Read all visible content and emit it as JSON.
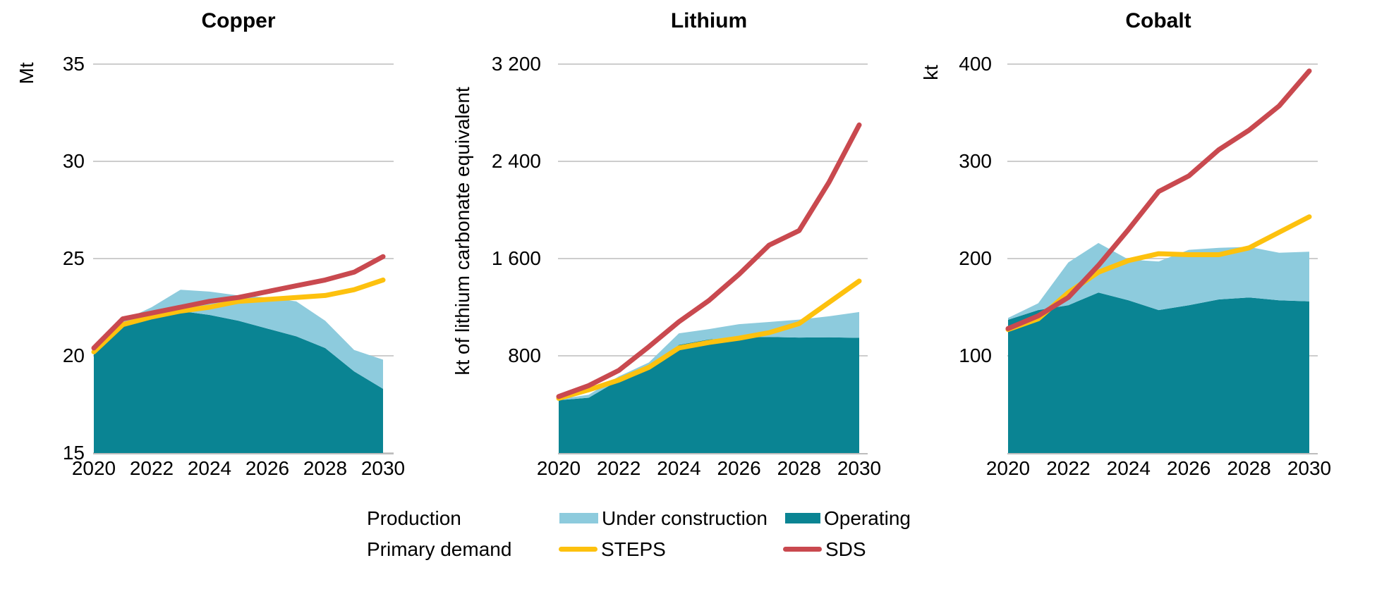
{
  "page": {
    "background": "#ffffff"
  },
  "colors": {
    "operating": "#0A8493",
    "under_construction": "#8DCBDD",
    "steps": "#FDC10E",
    "sds": "#C9494F",
    "gridline": "#CDCDCD",
    "baseline": "#BDBDBD",
    "text": "#000000"
  },
  "legend": {
    "production_label": "Production",
    "primary_demand_label": "Primary demand",
    "under_construction_label": "Under construction",
    "operating_label": "Operating",
    "steps_label": "STEPS",
    "sds_label": "SDS"
  },
  "chart_data": [
    {
      "type": "area",
      "title": "Copper",
      "unit_label": "Mt",
      "grid": true,
      "x": [
        2020,
        2021,
        2022,
        2023,
        2024,
        2025,
        2026,
        2027,
        2028,
        2029,
        2030
      ],
      "x_tick_labels": [
        "2020",
        "2022",
        "2024",
        "2026",
        "2028",
        "2030"
      ],
      "x_tick_years": [
        2020,
        2022,
        2024,
        2026,
        2028,
        2030
      ],
      "ylim": [
        15,
        35
      ],
      "y_ticks": [
        {
          "label": "35",
          "value": 35
        },
        {
          "label": "30",
          "value": 30
        },
        {
          "label": "25",
          "value": 25
        },
        {
          "label": "20",
          "value": 20
        },
        {
          "label": "15",
          "value": 15
        }
      ],
      "series": [
        {
          "name": "Operating",
          "role": "operating",
          "kind": "area",
          "values": [
            20.1,
            21.5,
            22.1,
            22.3,
            22.1,
            21.8,
            21.4,
            21.0,
            20.4,
            19.2,
            18.3
          ]
        },
        {
          "name": "Under construction",
          "role": "under_construction",
          "kind": "area-stacked-increment",
          "values": [
            0.15,
            0.3,
            0.4,
            1.1,
            1.2,
            1.3,
            1.6,
            1.8,
            1.4,
            1.1,
            1.5
          ]
        },
        {
          "name": "STEPS",
          "role": "steps",
          "kind": "line",
          "values": [
            20.2,
            21.6,
            22.0,
            22.3,
            22.5,
            22.8,
            22.9,
            23.0,
            23.1,
            23.4,
            23.9
          ]
        },
        {
          "name": "SDS",
          "role": "sds",
          "kind": "line",
          "values": [
            20.4,
            21.9,
            22.2,
            22.5,
            22.8,
            23.0,
            23.3,
            23.6,
            23.9,
            24.3,
            25.1
          ]
        }
      ]
    },
    {
      "type": "area",
      "title": "Lithium",
      "unit_label": "kt of lithium carbonate equivalent",
      "grid": true,
      "x": [
        2020,
        2021,
        2022,
        2023,
        2024,
        2025,
        2026,
        2027,
        2028,
        2029,
        2030
      ],
      "x_tick_labels": [
        "2020",
        "2022",
        "2024",
        "2026",
        "2028",
        "2030"
      ],
      "x_tick_years": [
        2020,
        2022,
        2024,
        2026,
        2028,
        2030
      ],
      "ylim": [
        0,
        3200
      ],
      "y_ticks": [
        {
          "label": "3 200",
          "value": 3200
        },
        {
          "label": "2 400",
          "value": 2400
        },
        {
          "label": "1 600",
          "value": 1600
        },
        {
          "label": "800",
          "value": 800
        }
      ],
      "series": [
        {
          "name": "Operating",
          "role": "operating",
          "kind": "area",
          "values": [
            435,
            455,
            600,
            710,
            890,
            935,
            950,
            955,
            950,
            952,
            948
          ]
        },
        {
          "name": "Under construction",
          "role": "under_construction",
          "kind": "area-stacked-increment",
          "values": [
            8,
            25,
            30,
            35,
            95,
            85,
            110,
            123,
            148,
            173,
            212
          ]
        },
        {
          "name": "STEPS",
          "role": "steps",
          "kind": "line",
          "values": [
            450,
            520,
            600,
            705,
            865,
            910,
            945,
            990,
            1065,
            1240,
            1415
          ]
        },
        {
          "name": "SDS",
          "role": "sds",
          "kind": "line",
          "values": [
            465,
            555,
            680,
            875,
            1080,
            1255,
            1470,
            1710,
            1830,
            2230,
            2700
          ]
        }
      ]
    },
    {
      "type": "area",
      "title": "Cobalt",
      "unit_label": "kt",
      "grid": true,
      "x": [
        2020,
        2021,
        2022,
        2023,
        2024,
        2025,
        2026,
        2027,
        2028,
        2029,
        2030
      ],
      "x_tick_labels": [
        "2020",
        "2022",
        "2024",
        "2026",
        "2028",
        "2030"
      ],
      "x_tick_years": [
        2020,
        2022,
        2024,
        2026,
        2028,
        2030
      ],
      "ylim": [
        0,
        400
      ],
      "y_ticks": [
        {
          "label": "400",
          "value": 400
        },
        {
          "label": "300",
          "value": 300
        },
        {
          "label": "200",
          "value": 200
        },
        {
          "label": "100",
          "value": 100
        }
      ],
      "series": [
        {
          "name": "Operating",
          "role": "operating",
          "kind": "area",
          "values": [
            137,
            147,
            152,
            165,
            157,
            147,
            152,
            158,
            160,
            157,
            156
          ]
        },
        {
          "name": "Under construction",
          "role": "under_construction",
          "kind": "area-stacked-increment",
          "values": [
            2,
            7,
            44,
            51,
            42,
            50,
            57,
            53,
            52,
            49,
            51
          ]
        },
        {
          "name": "STEPS",
          "role": "steps",
          "kind": "line",
          "values": [
            127,
            138,
            165,
            186,
            198,
            205,
            204,
            204,
            211,
            227,
            243
          ]
        },
        {
          "name": "SDS",
          "role": "sds",
          "kind": "line",
          "values": [
            128,
            141,
            160,
            193,
            230,
            269,
            285,
            312,
            332,
            357,
            393
          ]
        }
      ]
    }
  ]
}
